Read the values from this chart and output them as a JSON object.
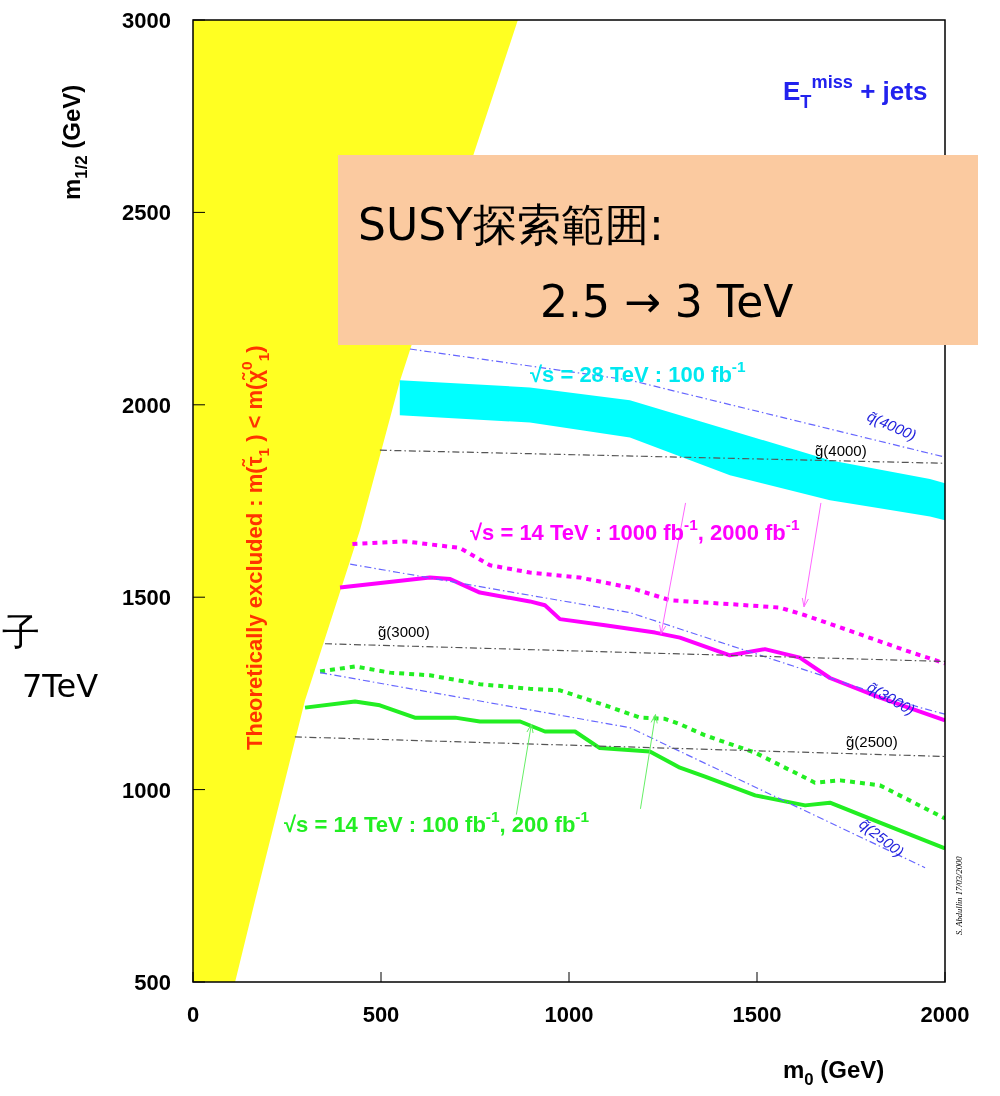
{
  "chart_data": {
    "type": "line",
    "xlabel": "m$_{0}$  (GeV)",
    "ylabel": "m$_{1/2}$  (GeV)",
    "xlim": [
      0,
      2000
    ],
    "ylim": [
      500,
      3000
    ],
    "xticks": [
      0,
      500,
      1000,
      1500,
      2000
    ],
    "yticks": [
      500,
      1000,
      1500,
      2000,
      2500,
      3000
    ],
    "series": [
      {
        "name": "Theoretically excluded   :   m(τ̃$_{1}$ ) < m(χ̃$^{0}$$_{1}$)",
        "type": "area",
        "color": "#ffff22",
        "x": [
          0,
          0,
          112,
          165,
          298,
          444,
          551,
          750,
          864
        ],
        "values": [
          3000,
          500,
          500,
          712,
          1232,
          1674,
          2064,
          2662,
          3000
        ]
      },
      {
        "name": "√s = 28 TeV : 100 fb$^{-1}$",
        "type": "area",
        "color": "#00ffff",
        "x": [
          550,
          896,
          1162,
          1428,
          1694,
          1960,
          2000,
          2000,
          1960,
          1694,
          1428,
          1162,
          896,
          550
        ],
        "values": [
          2064,
          2045,
          2012,
          1934,
          1856,
          1807,
          1796,
          1700,
          1710,
          1752,
          1817,
          1915,
          1954,
          1973
        ]
      },
      {
        "color": "#ff00ff",
        "line_style": "dotted",
        "x": [
          424,
          564,
          710,
          790,
          896,
          1029,
          1162,
          1269,
          1428,
          1561,
          1628,
          1761,
          1894,
          2000
        ],
        "values": [
          1638,
          1645,
          1628,
          1583,
          1564,
          1551,
          1525,
          1492,
          1482,
          1473,
          1453,
          1408,
          1362,
          1328
        ]
      },
      {
        "color": "#ff00ff",
        "line_style": "solid",
        "x": [
          391,
          630,
          684,
          763,
          896,
          936,
          976,
          1096,
          1229,
          1295,
          1428,
          1521,
          1614,
          1694,
          1827,
          2000
        ],
        "values": [
          1525,
          1551,
          1547,
          1512,
          1489,
          1479,
          1443,
          1427,
          1408,
          1395,
          1349,
          1365,
          1343,
          1290,
          1239,
          1180
        ]
      },
      {
        "color": "#22ee22",
        "line_style": "dotted",
        "x": [
          338,
          431,
          524,
          630,
          763,
          896,
          976,
          1096,
          1189,
          1255,
          1295,
          1362,
          1495,
          1654,
          1721,
          1827,
          2000
        ],
        "values": [
          1307,
          1320,
          1304,
          1297,
          1274,
          1262,
          1258,
          1219,
          1187,
          1184,
          1170,
          1141,
          1096,
          1018,
          1024,
          1011,
          925
        ]
      },
      {
        "color": "#22ee22",
        "line_style": "solid",
        "x": [
          298,
          431,
          497,
          590,
          697,
          763,
          870,
          936,
          1016,
          1082,
          1215,
          1295,
          1362,
          1495,
          1628,
          1694,
          1827,
          2000
        ],
        "values": [
          1213,
          1229,
          1219,
          1187,
          1187,
          1177,
          1177,
          1151,
          1151,
          1108,
          1099,
          1057,
          1034,
          985,
          959,
          966,
          914,
          847
        ]
      },
      {
        "name": "q̃(4000)",
        "color": "#6666ff",
        "line_style": "dashdot",
        "x": [
          577,
          1162,
          2000
        ],
        "values": [
          2145,
          2064,
          1864
        ]
      },
      {
        "name": "q̃(3000)",
        "color": "#6666ff",
        "line_style": "dashdot",
        "x": [
          418,
          1162,
          1934,
          2000
        ],
        "values": [
          1586,
          1460,
          1213,
          1196
        ]
      },
      {
        "name": "q̃(2500)",
        "color": "#6666ff",
        "line_style": "dashdot",
        "x": [
          338,
          1162,
          1947
        ],
        "values": [
          1304,
          1161,
          797
        ]
      },
      {
        "name": "g̃(4000)",
        "color": "#555555",
        "line_style": "dashdot",
        "x": [
          497,
          2000
        ],
        "values": [
          1882,
          1848
        ]
      },
      {
        "name": "g̃(3000)",
        "color": "#555555",
        "line_style": "dashdot",
        "x": [
          351,
          2000
        ],
        "values": [
          1379,
          1333
        ]
      },
      {
        "name": "g̃(2500)",
        "color": "#555555",
        "line_style": "dashdot",
        "x": [
          271,
          2000
        ],
        "values": [
          1137,
          1086
        ]
      }
    ],
    "annotations": [
      "E$_{T}$$^{miss}$ +  jets",
      {
        "text": "√s = 14 TeV : 1000 fb$^{-1}$,  2000 fb$^{-1}$",
        "x": 1245,
        "y": 1405
      },
      {
        "text": "√s = 14 TeV : 100 fb$^{-1}$,  200 fb$^{-1}$",
        "x": 900,
        "y": 1170
      },
      "SUSY探索範囲:\n2.5 → 3 TeV",
      "子",
      "7TeV",
      "S. Abdullin  17/03/2000"
    ]
  }
}
